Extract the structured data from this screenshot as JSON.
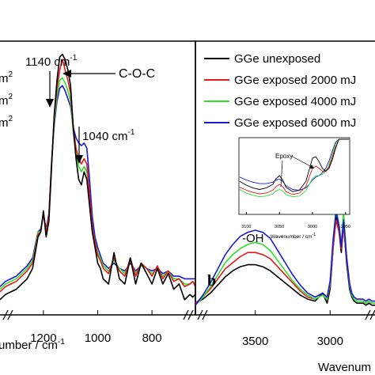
{
  "chart_data": [
    {
      "type": "line",
      "panel": "a",
      "title": "",
      "xlabel": "umber / cm",
      "xlabel_sup": "-1",
      "ylabel": "",
      "xlim": [
        1360,
        640
      ],
      "x_reversed": true,
      "tick_labels": [
        "1200",
        "1000",
        "800"
      ],
      "tick_values": [
        1200,
        1000,
        800
      ],
      "legend_fragments": [
        "m",
        "m",
        "m"
      ],
      "legend_sup": "2",
      "annotations": {
        "peak1140": "1140 cm",
        "peak1140_sup": "-1",
        "coc": "C-O-C",
        "peak1040": "1040 cm",
        "peak1040_sup": "-1"
      },
      "x": [
        1360,
        1340,
        1320,
        1300,
        1280,
        1260,
        1240,
        1230,
        1220,
        1210,
        1200,
        1190,
        1180,
        1170,
        1160,
        1150,
        1140,
        1130,
        1120,
        1110,
        1100,
        1090,
        1080,
        1070,
        1060,
        1050,
        1040,
        1030,
        1020,
        1010,
        1000,
        990,
        980,
        960,
        940,
        920,
        900,
        880,
        860,
        840,
        820,
        800,
        780,
        760,
        740,
        720,
        700,
        680,
        660,
        650,
        640
      ],
      "series": [
        {
          "name": "GGe unexposed",
          "color": "#000000",
          "values": [
            0.04,
            0.06,
            0.07,
            0.08,
            0.1,
            0.12,
            0.16,
            0.22,
            0.28,
            0.3,
            0.38,
            0.28,
            0.34,
            0.55,
            0.75,
            0.88,
            0.97,
            0.98,
            0.96,
            0.92,
            0.86,
            0.7,
            0.58,
            0.5,
            0.48,
            0.53,
            0.5,
            0.4,
            0.3,
            0.24,
            0.18,
            0.16,
            0.12,
            0.1,
            0.22,
            0.12,
            0.1,
            0.2,
            0.1,
            0.18,
            0.14,
            0.1,
            0.16,
            0.1,
            0.14,
            0.08,
            0.1,
            0.04,
            0.06,
            0.05,
            0.06
          ]
        },
        {
          "name": "GGe exposed 2000 mJ",
          "color": "#e41a1c",
          "values": [
            0.07,
            0.09,
            0.1,
            0.11,
            0.13,
            0.15,
            0.18,
            0.23,
            0.29,
            0.3,
            0.37,
            0.3,
            0.36,
            0.56,
            0.74,
            0.85,
            0.92,
            0.96,
            0.92,
            0.88,
            0.83,
            0.7,
            0.62,
            0.58,
            0.56,
            0.58,
            0.56,
            0.44,
            0.32,
            0.26,
            0.21,
            0.19,
            0.16,
            0.14,
            0.2,
            0.15,
            0.13,
            0.2,
            0.13,
            0.18,
            0.16,
            0.13,
            0.17,
            0.12,
            0.15,
            0.11,
            0.12,
            0.09,
            0.1,
            0.11,
            0.09
          ]
        },
        {
          "name": "GGe exposed 4000 mJ",
          "color": "#2ee02e",
          "values": [
            0.08,
            0.1,
            0.11,
            0.12,
            0.14,
            0.16,
            0.19,
            0.24,
            0.3,
            0.3,
            0.37,
            0.3,
            0.36,
            0.56,
            0.72,
            0.82,
            0.88,
            0.89,
            0.87,
            0.84,
            0.8,
            0.68,
            0.6,
            0.55,
            0.53,
            0.55,
            0.53,
            0.43,
            0.32,
            0.26,
            0.22,
            0.2,
            0.17,
            0.15,
            0.19,
            0.16,
            0.14,
            0.19,
            0.14,
            0.17,
            0.16,
            0.14,
            0.16,
            0.13,
            0.15,
            0.12,
            0.12,
            0.1,
            0.1,
            0.11,
            0.1
          ]
        },
        {
          "name": "GGe exposed 6000 mJ",
          "color": "#1a1ad6",
          "values": [
            0.09,
            0.11,
            0.12,
            0.13,
            0.15,
            0.17,
            0.2,
            0.25,
            0.3,
            0.31,
            0.37,
            0.31,
            0.37,
            0.57,
            0.71,
            0.8,
            0.85,
            0.86,
            0.84,
            0.81,
            0.78,
            0.7,
            0.66,
            0.64,
            0.63,
            0.64,
            0.62,
            0.5,
            0.36,
            0.28,
            0.24,
            0.21,
            0.18,
            0.16,
            0.18,
            0.16,
            0.15,
            0.18,
            0.15,
            0.17,
            0.16,
            0.15,
            0.16,
            0.14,
            0.15,
            0.13,
            0.13,
            0.12,
            0.12,
            0.12,
            0.12
          ]
        }
      ]
    },
    {
      "type": "line",
      "panel": "b",
      "panel_label": "b",
      "title": "",
      "xlabel": "Wavenum",
      "ylabel": "",
      "xlim": [
        3900,
        2700
      ],
      "x_reversed": true,
      "tick_labels": [
        "3500",
        "3000"
      ],
      "tick_values": [
        3500,
        3000
      ],
      "legend": [
        "GGe unexposed",
        "GGe exposed 2000 mJ",
        "GGe exposed 4000 mJ",
        "GGe exposed 6000 mJ"
      ],
      "x": [
        3900,
        3850,
        3800,
        3750,
        3700,
        3650,
        3600,
        3550,
        3500,
        3450,
        3400,
        3350,
        3300,
        3250,
        3200,
        3150,
        3100,
        3050,
        3020,
        3000,
        2980,
        2960,
        2940,
        2925,
        2910,
        2890,
        2870,
        2855,
        2840,
        2820,
        2800,
        2780,
        2760,
        2740,
        2720,
        2700
      ],
      "series": [
        {
          "name": "GGe unexposed",
          "color": "#000000",
          "values": [
            0.05,
            0.07,
            0.1,
            0.14,
            0.18,
            0.21,
            0.23,
            0.24,
            0.24,
            0.23,
            0.21,
            0.18,
            0.15,
            0.12,
            0.09,
            0.07,
            0.06,
            0.1,
            0.05,
            0.12,
            0.32,
            0.48,
            0.4,
            0.3,
            0.44,
            0.25,
            0.12,
            0.08,
            0.06,
            0.05,
            0.05,
            0.05,
            0.04,
            0.05,
            0.04,
            0.04
          ]
        },
        {
          "name": "GGe exposed 2000 mJ",
          "color": "#e41a1c",
          "values": [
            0.05,
            0.08,
            0.12,
            0.17,
            0.22,
            0.25,
            0.28,
            0.3,
            0.3,
            0.29,
            0.27,
            0.23,
            0.19,
            0.15,
            0.11,
            0.08,
            0.07,
            0.09,
            0.07,
            0.14,
            0.32,
            0.46,
            0.4,
            0.32,
            0.43,
            0.27,
            0.14,
            0.09,
            0.07,
            0.06,
            0.06,
            0.06,
            0.05,
            0.06,
            0.05,
            0.05
          ]
        },
        {
          "name": "GGe exposed 4000 mJ",
          "color": "#2ee02e",
          "values": [
            0.04,
            0.08,
            0.13,
            0.19,
            0.25,
            0.29,
            0.32,
            0.34,
            0.35,
            0.34,
            0.31,
            0.26,
            0.21,
            0.16,
            0.12,
            0.09,
            0.07,
            0.09,
            0.07,
            0.15,
            0.36,
            0.52,
            0.44,
            0.34,
            0.5,
            0.28,
            0.14,
            0.09,
            0.07,
            0.06,
            0.06,
            0.06,
            0.05,
            0.06,
            0.05,
            0.05
          ]
        },
        {
          "name": "GGe exposed 6000 mJ",
          "color": "#1a1ad6",
          "values": [
            0.04,
            0.09,
            0.15,
            0.22,
            0.29,
            0.34,
            0.38,
            0.4,
            0.41,
            0.4,
            0.37,
            0.31,
            0.25,
            0.19,
            0.14,
            0.1,
            0.08,
            0.1,
            0.08,
            0.16,
            0.36,
            0.5,
            0.43,
            0.33,
            0.46,
            0.28,
            0.15,
            0.1,
            0.08,
            0.07,
            0.07,
            0.07,
            0.06,
            0.07,
            0.06,
            0.06
          ]
        }
      ],
      "inset": {
        "type": "line",
        "annotation": "Epoxy",
        "oh_label": "-OH",
        "xlabel": "Wavenumber / cm",
        "xlabel_sup": "-1",
        "tick_labels": [
          "3100",
          "3050",
          "3000",
          "2950"
        ],
        "tick_values": [
          3100,
          3050,
          3000,
          2950
        ],
        "xlim": [
          3110,
          2945
        ],
        "x": [
          3110,
          3100,
          3090,
          3080,
          3070,
          3060,
          3055,
          3050,
          3045,
          3040,
          3030,
          3020,
          3010,
          3005,
          3000,
          2995,
          2990,
          2985,
          2980,
          2975,
          2970,
          2965,
          2960,
          2955,
          2950,
          2945
        ],
        "series": [
          {
            "name": "GGe unexposed",
            "color": "#000000",
            "values": [
              0.42,
              0.37,
              0.33,
              0.31,
              0.33,
              0.38,
              0.46,
              0.5,
              0.44,
              0.34,
              0.28,
              0.3,
              0.42,
              0.58,
              0.74,
              0.76,
              0.69,
              0.6,
              0.56,
              0.6,
              0.72,
              0.88,
              1.0,
              1.0,
              1.0,
              1.0
            ]
          },
          {
            "name": "GGe exposed 2000 mJ",
            "color": "#e41a1c",
            "values": [
              0.34,
              0.3,
              0.27,
              0.25,
              0.26,
              0.3,
              0.35,
              0.38,
              0.35,
              0.28,
              0.24,
              0.26,
              0.35,
              0.48,
              0.6,
              0.63,
              0.6,
              0.56,
              0.56,
              0.62,
              0.76,
              0.9,
              1.0,
              1.0,
              1.0,
              1.0
            ]
          },
          {
            "name": "GGe exposed 4000 mJ",
            "color": "#2ee02e",
            "values": [
              0.31,
              0.26,
              0.23,
              0.21,
              0.22,
              0.25,
              0.29,
              0.31,
              0.29,
              0.24,
              0.21,
              0.22,
              0.29,
              0.38,
              0.46,
              0.5,
              0.5,
              0.52,
              0.56,
              0.65,
              0.8,
              0.94,
              1.0,
              1.0,
              1.0,
              1.0
            ]
          },
          {
            "name": "GGe exposed 6000 mJ",
            "color": "#1a1ad6",
            "values": [
              0.48,
              0.44,
              0.41,
              0.39,
              0.39,
              0.41,
              0.44,
              0.45,
              0.42,
              0.36,
              0.31,
              0.3,
              0.33,
              0.38,
              0.44,
              0.48,
              0.5,
              0.54,
              0.6,
              0.7,
              0.84,
              0.96,
              1.0,
              1.0,
              1.0,
              1.0
            ]
          }
        ]
      }
    }
  ]
}
